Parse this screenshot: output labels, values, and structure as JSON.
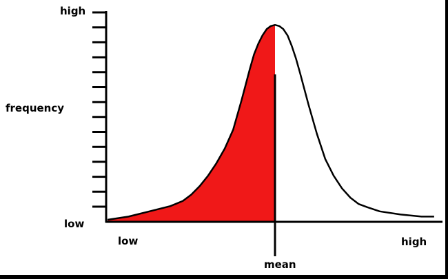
{
  "chart_data": {
    "type": "area",
    "title": "",
    "ylabel": "frequency",
    "y_axis": {
      "top_label": "high",
      "bottom_label": "low",
      "tick_count": 14,
      "ylim": [
        0,
        1
      ]
    },
    "x_axis": {
      "left_label": "low",
      "right_label": "high",
      "center_label": "mean",
      "xlim": [
        -4,
        4
      ]
    },
    "series": [
      {
        "x": [
          -4.0,
          -3.5,
          -3.0,
          -2.5,
          -2.2,
          -2.0,
          -1.8,
          -1.6,
          -1.4,
          -1.2,
          -1.0,
          -0.8,
          -0.6,
          -0.5,
          -0.4,
          -0.3,
          -0.2,
          -0.1,
          0.0,
          0.1,
          0.2,
          0.3,
          0.4,
          0.5,
          0.6,
          0.8,
          1.0,
          1.2,
          1.4,
          1.6,
          1.8,
          2.0,
          2.2,
          2.5,
          3.0,
          3.5,
          3.8
        ],
        "y": [
          0.01,
          0.025,
          0.05,
          0.075,
          0.1,
          0.13,
          0.17,
          0.22,
          0.28,
          0.35,
          0.44,
          0.58,
          0.73,
          0.8,
          0.85,
          0.89,
          0.92,
          0.935,
          0.94,
          0.935,
          0.92,
          0.89,
          0.84,
          0.78,
          0.71,
          0.56,
          0.42,
          0.3,
          0.22,
          0.16,
          0.115,
          0.085,
          0.07,
          0.05,
          0.035,
          0.025,
          0.025
        ]
      }
    ],
    "shaded_region": {
      "x_from": -4.0,
      "x_to": 0.0,
      "color": "#f01818"
    },
    "colors": {
      "fill": "#f01818",
      "curve": "#000000",
      "axes": "#000000",
      "background": "#ffffff",
      "border": "#000000"
    }
  }
}
